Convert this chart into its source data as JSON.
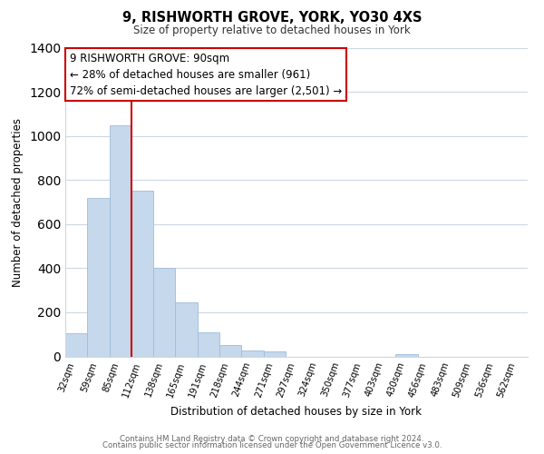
{
  "title": "9, RISHWORTH GROVE, YORK, YO30 4XS",
  "subtitle": "Size of property relative to detached houses in York",
  "xlabel": "Distribution of detached houses by size in York",
  "ylabel": "Number of detached properties",
  "bar_color": "#c5d8ec",
  "bar_edge_color": "#a0bcda",
  "categories": [
    "32sqm",
    "59sqm",
    "85sqm",
    "112sqm",
    "138sqm",
    "165sqm",
    "191sqm",
    "218sqm",
    "244sqm",
    "271sqm",
    "297sqm",
    "324sqm",
    "350sqm",
    "377sqm",
    "403sqm",
    "430sqm",
    "456sqm",
    "483sqm",
    "509sqm",
    "536sqm",
    "562sqm"
  ],
  "values": [
    107,
    720,
    1050,
    750,
    400,
    245,
    110,
    50,
    28,
    22,
    0,
    0,
    0,
    0,
    0,
    10,
    0,
    0,
    0,
    0,
    0
  ],
  "ylim": [
    0,
    1400
  ],
  "yticks": [
    0,
    200,
    400,
    600,
    800,
    1000,
    1200,
    1400
  ],
  "vline_x": 2.5,
  "vline_color": "#cc0000",
  "annotation_text": "9 RISHWORTH GROVE: 90sqm\n← 28% of detached houses are smaller (961)\n72% of semi-detached houses are larger (2,501) →",
  "annotation_box_color": "#ffffff",
  "annotation_box_edge": "#cc0000",
  "footer_line1": "Contains HM Land Registry data © Crown copyright and database right 2024.",
  "footer_line2": "Contains public sector information licensed under the Open Government Licence v3.0.",
  "background_color": "#ffffff",
  "grid_color": "#ccd8e4"
}
